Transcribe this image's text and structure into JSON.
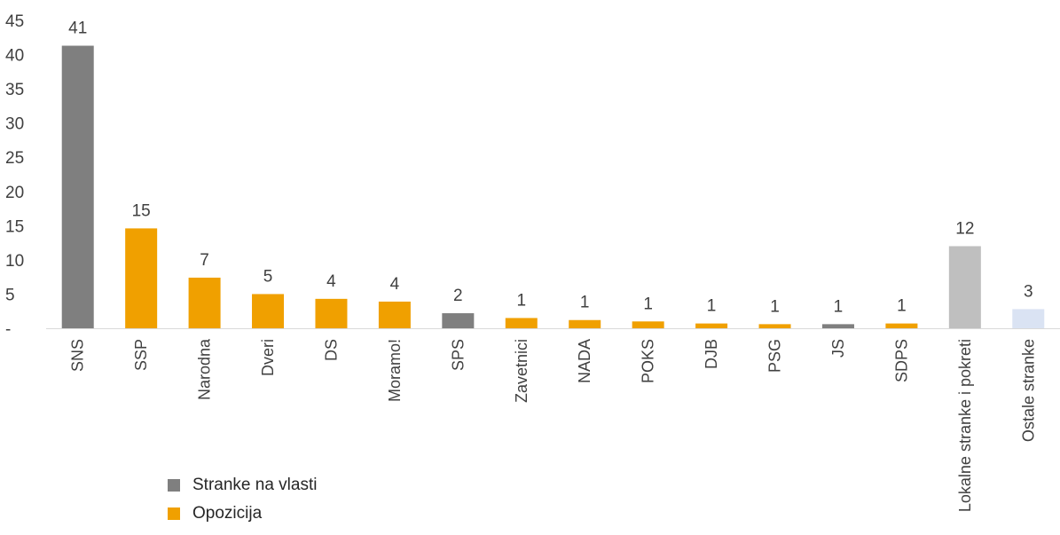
{
  "chart_data": {
    "type": "bar",
    "categories": [
      "SNS",
      "SSP",
      "Narodna",
      "Dveri",
      "DS",
      "Moramo!",
      "SPS",
      "Zavetnici",
      "NADA",
      "POKS",
      "DJB",
      "PSG",
      "JS",
      "SDPS",
      "Lokalne stranke i pokreti",
      "Ostale stranke"
    ],
    "values": [
      41.3,
      14.6,
      7.4,
      5.0,
      4.3,
      3.9,
      2.2,
      1.5,
      1.2,
      1.0,
      0.7,
      0.6,
      0.6,
      0.7,
      12.0,
      2.8
    ],
    "data_labels": [
      "41",
      "15",
      "7",
      "5",
      "4",
      "4",
      "2",
      "1",
      "1",
      "1",
      "1",
      "1",
      "1",
      "1",
      "12",
      "3"
    ],
    "groups": [
      "vlast",
      "opozicija",
      "opozicija",
      "opozicija",
      "opozicija",
      "opozicija",
      "vlast",
      "opozicija",
      "opozicija",
      "opozicija",
      "opozicija",
      "opozicija",
      "vlast",
      "opozicija",
      "lokalne",
      "ostale"
    ],
    "group_colors": {
      "vlast": "#7f7f7f",
      "opozicija": "#f0a000",
      "lokalne": "#bfbfbf",
      "ostale": "#dae3f3"
    },
    "y_ticks": [
      "-",
      "5",
      "10",
      "15",
      "20",
      "25",
      "30",
      "35",
      "40",
      "45"
    ],
    "ylim": [
      0,
      45
    ],
    "grid": false,
    "legend_position": "bottom-left"
  },
  "legend": [
    {
      "label": "Stranke na vlasti",
      "color": "#7f7f7f"
    },
    {
      "label": "Opozicija",
      "color": "#f0a000"
    }
  ]
}
